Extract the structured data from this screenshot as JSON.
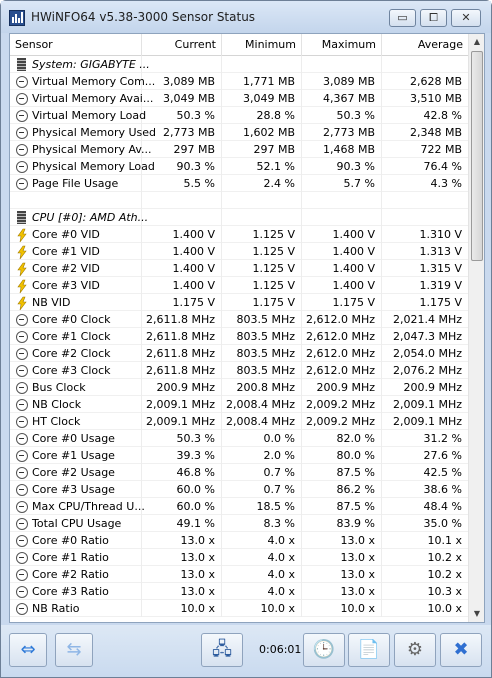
{
  "window": {
    "title": "HWiNFO64 v5.38-3000 Sensor Status",
    "controls": {
      "minimize": "▭",
      "maximize": "⧠",
      "close": "✕"
    }
  },
  "columns": [
    "Sensor",
    "Current",
    "Minimum",
    "Maximum",
    "Average"
  ],
  "rows": [
    {
      "icon": "chip-icon",
      "group": true,
      "name": "System: GIGABYTE ...",
      "values": [
        "",
        "",
        "",
        ""
      ]
    },
    {
      "icon": "clock-icon",
      "name": "Virtual Memory Com...",
      "values": [
        "3,089 MB",
        "1,771 MB",
        "3,089 MB",
        "2,628 MB"
      ]
    },
    {
      "icon": "clock-icon",
      "name": "Virtual Memory Avai...",
      "values": [
        "3,049 MB",
        "3,049 MB",
        "4,367 MB",
        "3,510 MB"
      ]
    },
    {
      "icon": "clock-icon",
      "name": "Virtual Memory Load",
      "values": [
        "50.3 %",
        "28.8 %",
        "50.3 %",
        "42.8 %"
      ]
    },
    {
      "icon": "clock-icon",
      "name": "Physical Memory Used",
      "values": [
        "2,773 MB",
        "1,602 MB",
        "2,773 MB",
        "2,348 MB"
      ]
    },
    {
      "icon": "clock-icon",
      "name": "Physical Memory Av...",
      "values": [
        "297 MB",
        "297 MB",
        "1,468 MB",
        "722 MB"
      ]
    },
    {
      "icon": "clock-icon",
      "name": "Physical Memory Load",
      "values": [
        "90.3 %",
        "52.1 %",
        "90.3 %",
        "76.4 %"
      ]
    },
    {
      "icon": "clock-icon",
      "name": "Page File Usage",
      "values": [
        "5.5 %",
        "2.4 %",
        "5.7 %",
        "4.3 %"
      ]
    },
    {
      "icon": "",
      "name": "",
      "values": [
        "",
        "",
        "",
        ""
      ]
    },
    {
      "icon": "chip-icon",
      "group": true,
      "name": "CPU [#0]: AMD Ath...",
      "values": [
        "",
        "",
        "",
        ""
      ]
    },
    {
      "icon": "volt-icon",
      "name": "Core #0 VID",
      "values": [
        "1.400 V",
        "1.125 V",
        "1.400 V",
        "1.310 V"
      ]
    },
    {
      "icon": "volt-icon",
      "name": "Core #1 VID",
      "values": [
        "1.400 V",
        "1.125 V",
        "1.400 V",
        "1.313 V"
      ]
    },
    {
      "icon": "volt-icon",
      "name": "Core #2 VID",
      "values": [
        "1.400 V",
        "1.125 V",
        "1.400 V",
        "1.315 V"
      ]
    },
    {
      "icon": "volt-icon",
      "name": "Core #3 VID",
      "values": [
        "1.400 V",
        "1.125 V",
        "1.400 V",
        "1.319 V"
      ]
    },
    {
      "icon": "volt-icon",
      "name": "NB VID",
      "values": [
        "1.175 V",
        "1.175 V",
        "1.175 V",
        "1.175 V"
      ]
    },
    {
      "icon": "clock-icon",
      "name": "Core #0 Clock",
      "values": [
        "2,611.8 MHz",
        "803.5 MHz",
        "2,612.0 MHz",
        "2,021.4 MHz"
      ]
    },
    {
      "icon": "clock-icon",
      "name": "Core #1 Clock",
      "values": [
        "2,611.8 MHz",
        "803.5 MHz",
        "2,612.0 MHz",
        "2,047.3 MHz"
      ]
    },
    {
      "icon": "clock-icon",
      "name": "Core #2 Clock",
      "values": [
        "2,611.8 MHz",
        "803.5 MHz",
        "2,612.0 MHz",
        "2,054.0 MHz"
      ]
    },
    {
      "icon": "clock-icon",
      "name": "Core #3 Clock",
      "values": [
        "2,611.8 MHz",
        "803.5 MHz",
        "2,612.0 MHz",
        "2,076.2 MHz"
      ]
    },
    {
      "icon": "clock-icon",
      "name": "Bus Clock",
      "values": [
        "200.9 MHz",
        "200.8 MHz",
        "200.9 MHz",
        "200.9 MHz"
      ]
    },
    {
      "icon": "clock-icon",
      "name": "NB Clock",
      "values": [
        "2,009.1 MHz",
        "2,008.4 MHz",
        "2,009.2 MHz",
        "2,009.1 MHz"
      ]
    },
    {
      "icon": "clock-icon",
      "name": "HT Clock",
      "values": [
        "2,009.1 MHz",
        "2,008.4 MHz",
        "2,009.2 MHz",
        "2,009.1 MHz"
      ]
    },
    {
      "icon": "clock-icon",
      "name": "Core #0 Usage",
      "values": [
        "50.3 %",
        "0.0 %",
        "82.0 %",
        "31.2 %"
      ]
    },
    {
      "icon": "clock-icon",
      "name": "Core #1 Usage",
      "values": [
        "39.3 %",
        "2.0 %",
        "80.0 %",
        "27.6 %"
      ]
    },
    {
      "icon": "clock-icon",
      "name": "Core #2 Usage",
      "values": [
        "46.8 %",
        "0.7 %",
        "87.5 %",
        "42.5 %"
      ]
    },
    {
      "icon": "clock-icon",
      "name": "Core #3 Usage",
      "values": [
        "60.0 %",
        "0.7 %",
        "86.2 %",
        "38.6 %"
      ]
    },
    {
      "icon": "clock-icon",
      "name": "Max CPU/Thread U...",
      "values": [
        "60.0 %",
        "18.5 %",
        "87.5 %",
        "48.4 %"
      ]
    },
    {
      "icon": "clock-icon",
      "name": "Total CPU Usage",
      "values": [
        "49.1 %",
        "8.3 %",
        "83.9 %",
        "35.0 %"
      ]
    },
    {
      "icon": "clock-icon",
      "name": "Core #0 Ratio",
      "values": [
        "13.0 x",
        "4.0 x",
        "13.0 x",
        "10.1 x"
      ]
    },
    {
      "icon": "clock-icon",
      "name": "Core #1 Ratio",
      "values": [
        "13.0 x",
        "4.0 x",
        "13.0 x",
        "10.2 x"
      ]
    },
    {
      "icon": "clock-icon",
      "name": "Core #2 Ratio",
      "values": [
        "13.0 x",
        "4.0 x",
        "13.0 x",
        "10.2 x"
      ]
    },
    {
      "icon": "clock-icon",
      "name": "Core #3 Ratio",
      "values": [
        "13.0 x",
        "4.0 x",
        "13.0 x",
        "10.3 x"
      ]
    },
    {
      "icon": "clock-icon",
      "name": "NB Ratio",
      "values": [
        "10.0 x",
        "10.0 x",
        "10.0 x",
        "10.0 x"
      ]
    }
  ],
  "toolbar": {
    "elapsed": "0:06:01",
    "buttons": [
      {
        "name": "expand-collapse-icon",
        "glyph": "⇔",
        "color": "#2f7ad8"
      },
      {
        "name": "layout-toggle-icon",
        "glyph": "⇆",
        "color": "#8fb6e6"
      },
      {
        "name": "network-icon",
        "glyph": "🖧",
        "color": "#2e5c9e"
      },
      {
        "name": "clock-reset-icon",
        "glyph": "🕒",
        "color": "#333333"
      },
      {
        "name": "report-add-icon",
        "glyph": "📄",
        "color": "#4a8a3a"
      },
      {
        "name": "settings-gear-icon",
        "glyph": "⚙",
        "color": "#666666"
      },
      {
        "name": "close-x-icon",
        "glyph": "✖",
        "color": "#2f6fd1"
      }
    ]
  }
}
